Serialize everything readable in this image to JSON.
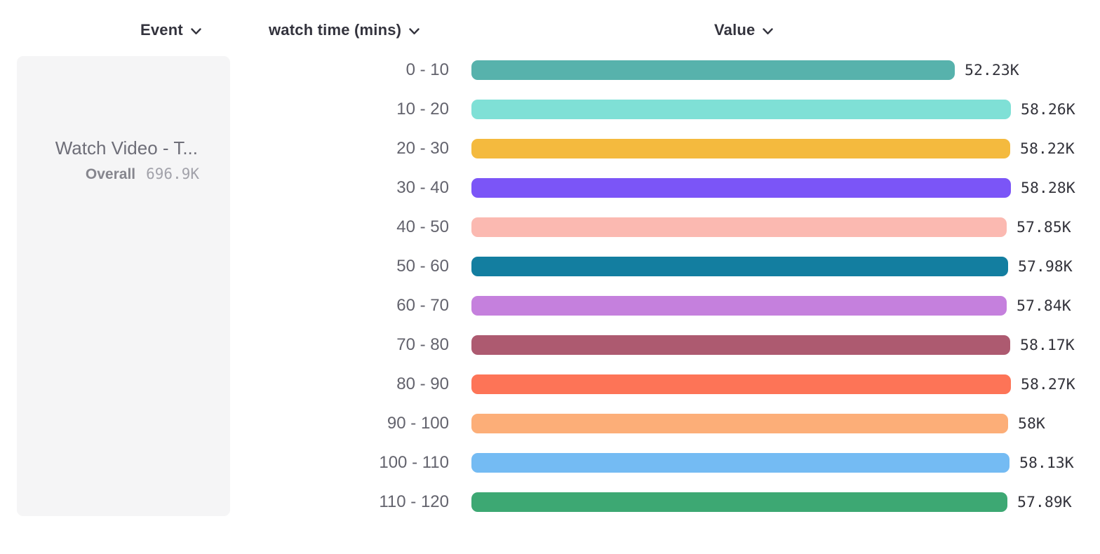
{
  "header": {
    "columns": [
      {
        "label": "Event",
        "icon": "chevron-down"
      },
      {
        "label": "watch time (mins)",
        "icon": "chevron-down"
      },
      {
        "label": "Value",
        "icon": "chevron-down"
      }
    ]
  },
  "event_card": {
    "name": "Watch Video - T...",
    "overall_label": "Overall",
    "overall_value": "696.9K"
  },
  "chart_data": {
    "type": "bar",
    "orientation": "horizontal",
    "title": "",
    "xlabel": "Value",
    "ylabel": "watch time (mins)",
    "unit": "events",
    "xlim": [
      0,
      58280
    ],
    "grid": false,
    "legend_position": "left",
    "categories": [
      "0 - 10",
      "10 - 20",
      "20 - 30",
      "30 - 40",
      "40 - 50",
      "50 - 60",
      "60 - 70",
      "70 - 80",
      "80 - 90",
      "90 - 100",
      "100 - 110",
      "110 - 120"
    ],
    "values": [
      52230,
      58260,
      58220,
      58280,
      57850,
      57980,
      57840,
      58170,
      58270,
      58000,
      58130,
      57890
    ],
    "value_labels": [
      "52.23K",
      "58.26K",
      "58.22K",
      "58.28K",
      "57.85K",
      "57.98K",
      "57.84K",
      "58.17K",
      "58.27K",
      "58K",
      "58.13K",
      "57.89K"
    ],
    "colors": [
      "#57B2AC",
      "#7FE0D6",
      "#F4BA3E",
      "#7B55F7",
      "#FBB9B1",
      "#137EA0",
      "#C580DD",
      "#AD5A70",
      "#FD7457",
      "#FCAE78",
      "#74BBF3",
      "#3DA873"
    ]
  },
  "colors": {
    "header_text": "#33333d",
    "category_text": "#63636d",
    "value_text": "#33333b",
    "card_bg": "#f5f5f6",
    "page_bg": "#ffffff"
  }
}
